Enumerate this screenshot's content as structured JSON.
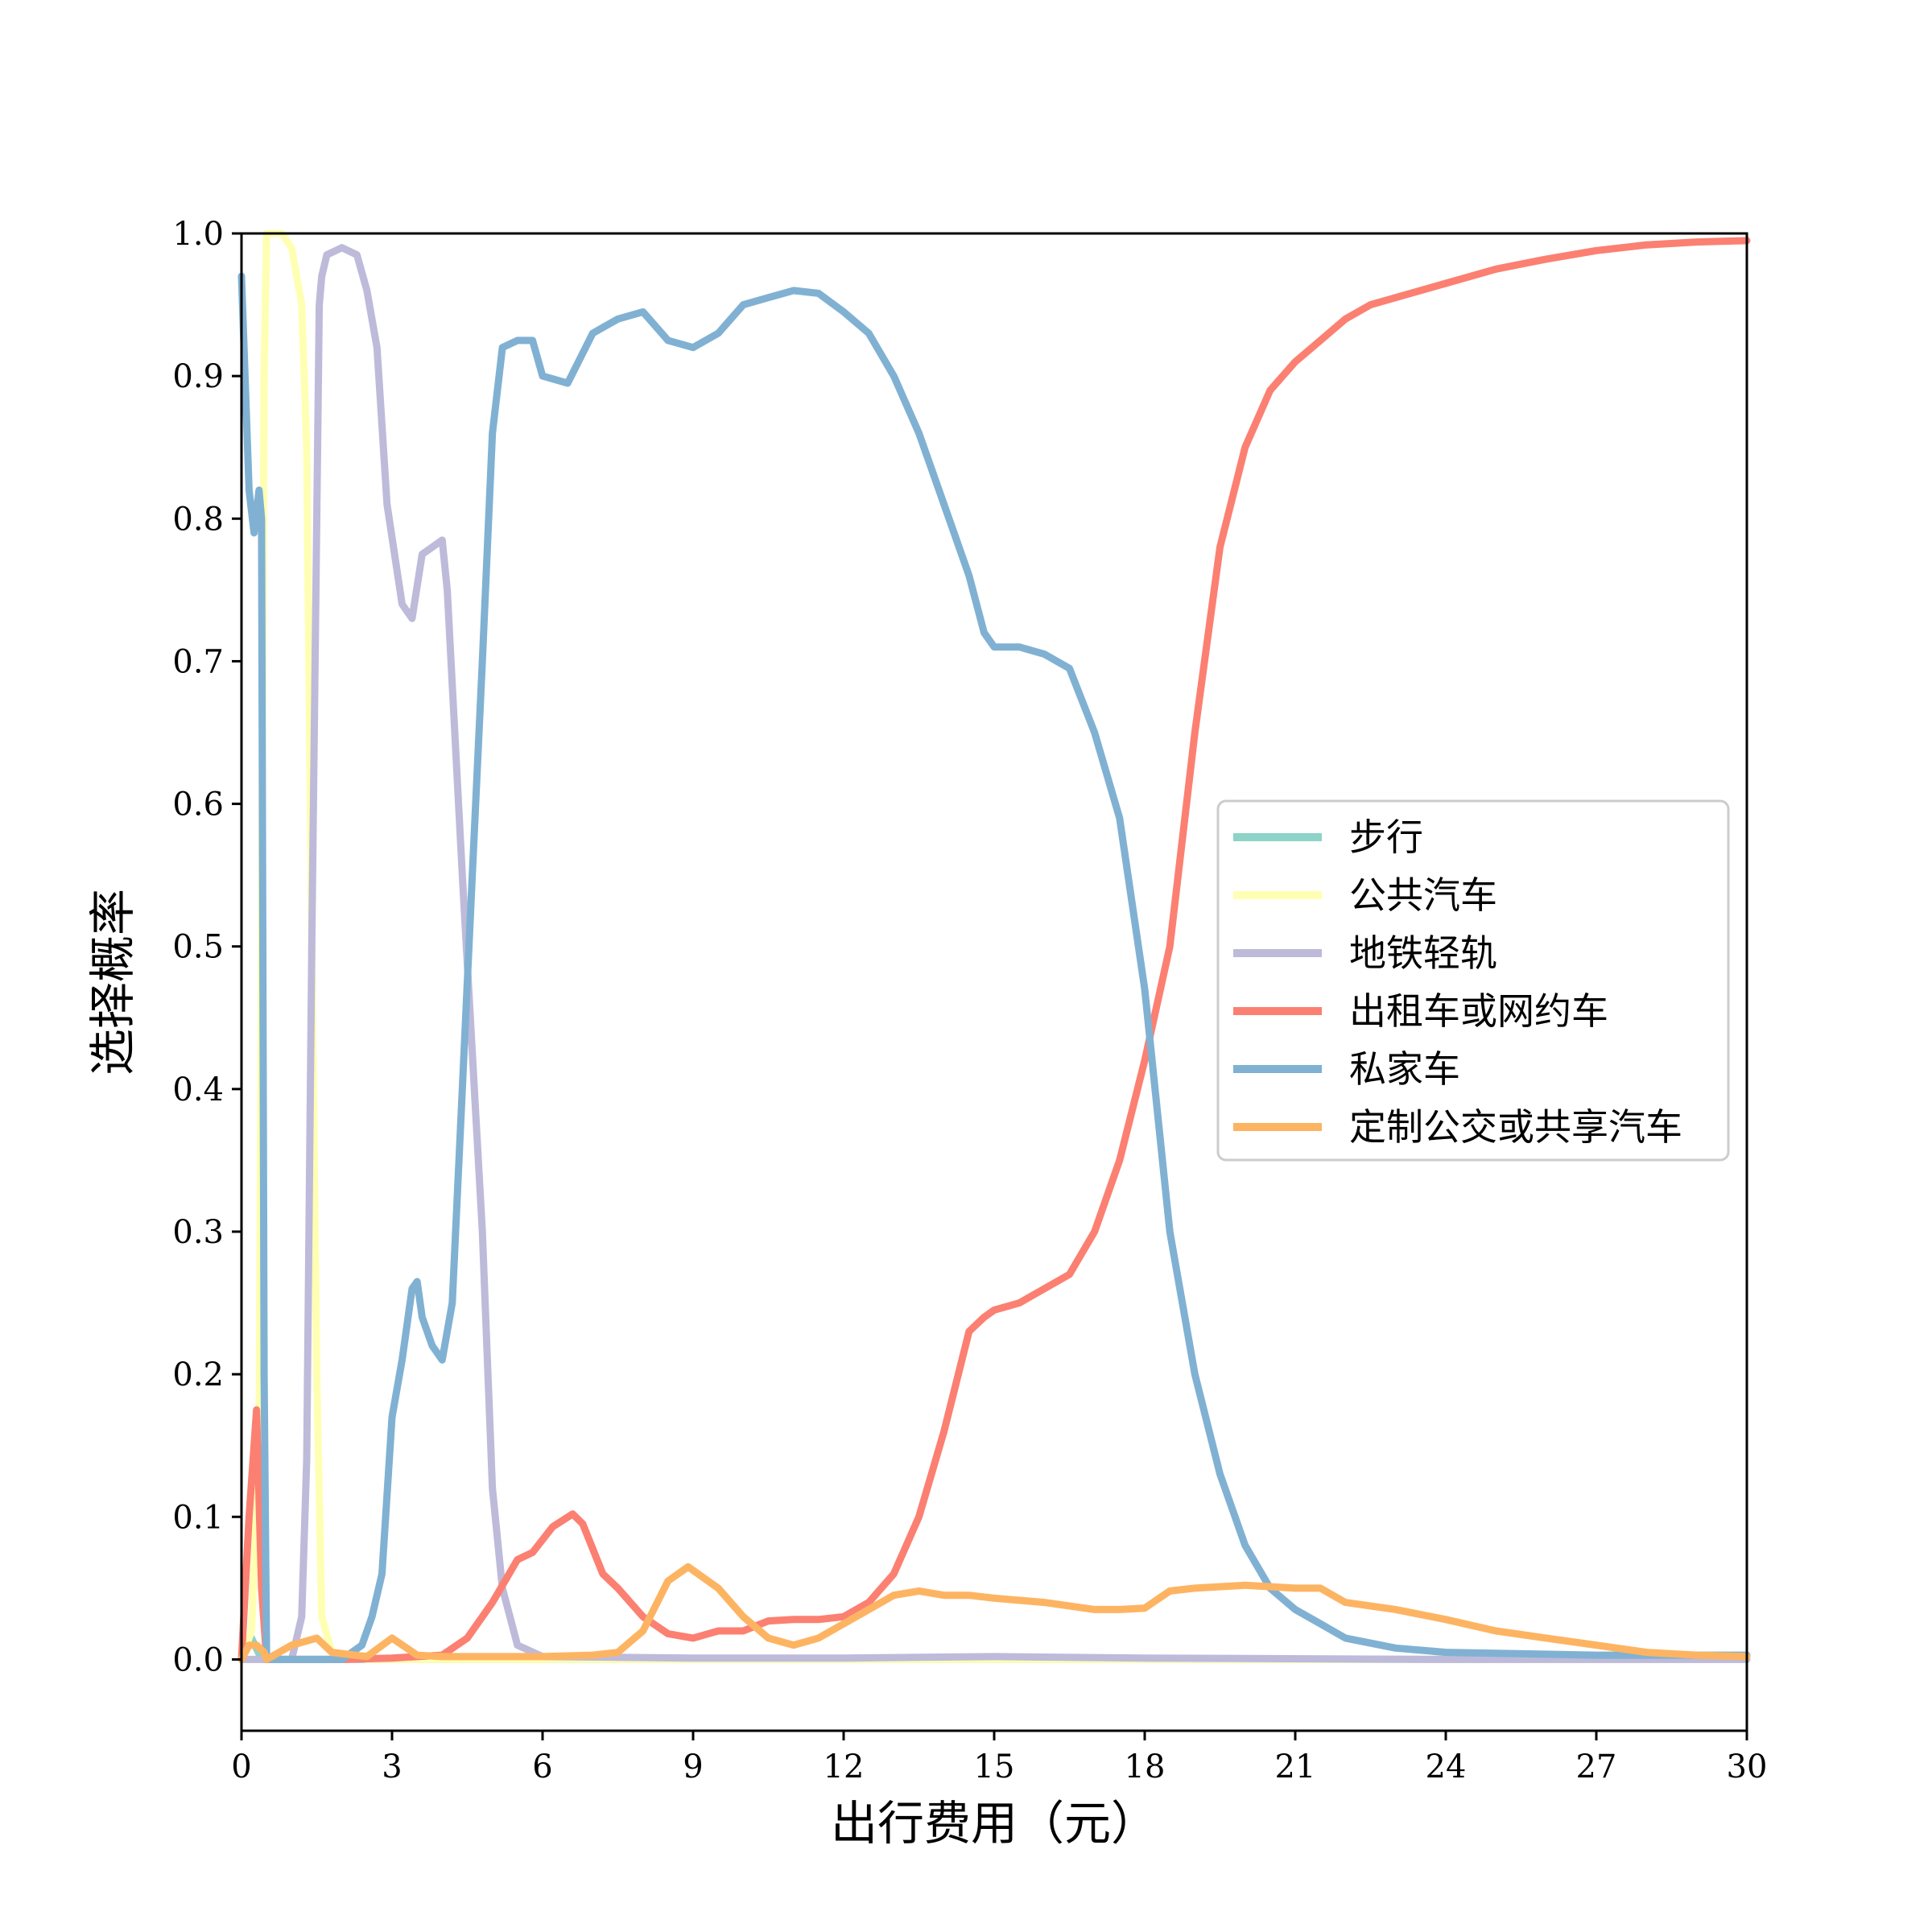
{
  "chart_data": {
    "type": "line",
    "title": "",
    "xlabel": "出行费用（元）",
    "ylabel": "选择概率",
    "xlim": [
      0,
      30
    ],
    "ylim": [
      -0.05,
      1.0
    ],
    "xticks": [
      0,
      3,
      6,
      9,
      12,
      15,
      18,
      21,
      24,
      27,
      30
    ],
    "xtick_labels": [
      "0",
      "3",
      "6",
      "9",
      "12",
      "15",
      "18",
      "21",
      "24",
      "27",
      "30"
    ],
    "yticks": [
      0.0,
      0.1,
      0.2,
      0.3,
      0.4,
      0.5,
      0.6,
      0.7,
      0.8,
      0.9,
      1.0
    ],
    "ytick_labels": [
      "0.0",
      "0.1",
      "0.2",
      "0.3",
      "0.4",
      "0.5",
      "0.6",
      "0.7",
      "0.8",
      "0.9",
      "1.0"
    ],
    "grid": false,
    "legend_position": "center-right",
    "series": [
      {
        "name": "步行",
        "color": "#8dd3c7",
        "points": [
          [
            0,
            0.0
          ],
          [
            0.2,
            0.015
          ],
          [
            0.4,
            0.0
          ],
          [
            2,
            0.0
          ],
          [
            30,
            0.0
          ]
        ]
      },
      {
        "name": "公共汽车",
        "color": "#ffffb3",
        "points": [
          [
            0,
            0.0
          ],
          [
            0.2,
            0.02
          ],
          [
            0.35,
            0.15
          ],
          [
            0.45,
            0.9
          ],
          [
            0.5,
            1.0
          ],
          [
            0.8,
            1.0
          ],
          [
            1.0,
            0.99
          ],
          [
            1.2,
            0.95
          ],
          [
            1.3,
            0.85
          ],
          [
            1.4,
            0.5
          ],
          [
            1.5,
            0.2
          ],
          [
            1.6,
            0.03
          ],
          [
            1.8,
            0.005
          ],
          [
            2.5,
            0.0
          ],
          [
            30,
            0.0
          ]
        ]
      },
      {
        "name": "地铁轻轨",
        "color": "#bebada",
        "points": [
          [
            0,
            0.0
          ],
          [
            0.3,
            0.0
          ],
          [
            1.0,
            0.0
          ],
          [
            1.2,
            0.03
          ],
          [
            1.3,
            0.14
          ],
          [
            1.4,
            0.5
          ],
          [
            1.5,
            0.8
          ],
          [
            1.55,
            0.95
          ],
          [
            1.6,
            0.97
          ],
          [
            1.7,
            0.985
          ],
          [
            2.0,
            0.99
          ],
          [
            2.3,
            0.985
          ],
          [
            2.5,
            0.96
          ],
          [
            2.7,
            0.92
          ],
          [
            2.9,
            0.81
          ],
          [
            3.2,
            0.74
          ],
          [
            3.4,
            0.73
          ],
          [
            3.6,
            0.775
          ],
          [
            4.0,
            0.785
          ],
          [
            4.1,
            0.75
          ],
          [
            4.4,
            0.55
          ],
          [
            4.8,
            0.3
          ],
          [
            5.0,
            0.12
          ],
          [
            5.2,
            0.05
          ],
          [
            5.5,
            0.01
          ],
          [
            6.0,
            0.002
          ],
          [
            9,
            0.001
          ],
          [
            12,
            0.001
          ],
          [
            15,
            0.002
          ],
          [
            18,
            0.001
          ],
          [
            24,
            0.0
          ],
          [
            30,
            0.0
          ]
        ]
      },
      {
        "name": "出租车或网约车",
        "color": "#fb8072",
        "points": [
          [
            0,
            0.0
          ],
          [
            0.15,
            0.1
          ],
          [
            0.3,
            0.175
          ],
          [
            0.4,
            0.05
          ],
          [
            0.5,
            0.0
          ],
          [
            2,
            0.0
          ],
          [
            3,
            0.001
          ],
          [
            4,
            0.003
          ],
          [
            4.5,
            0.015
          ],
          [
            5.0,
            0.04
          ],
          [
            5.5,
            0.07
          ],
          [
            5.8,
            0.075
          ],
          [
            6.2,
            0.093
          ],
          [
            6.6,
            0.102
          ],
          [
            6.8,
            0.095
          ],
          [
            7.2,
            0.06
          ],
          [
            7.5,
            0.05
          ],
          [
            8.0,
            0.03
          ],
          [
            8.5,
            0.018
          ],
          [
            9.0,
            0.015
          ],
          [
            9.5,
            0.02
          ],
          [
            10.0,
            0.02
          ],
          [
            10.5,
            0.027
          ],
          [
            11.0,
            0.028
          ],
          [
            11.5,
            0.028
          ],
          [
            12.0,
            0.03
          ],
          [
            12.5,
            0.04
          ],
          [
            13.0,
            0.06
          ],
          [
            13.5,
            0.1
          ],
          [
            14.0,
            0.16
          ],
          [
            14.5,
            0.23
          ],
          [
            14.8,
            0.24
          ],
          [
            15.0,
            0.245
          ],
          [
            15.5,
            0.25
          ],
          [
            16.0,
            0.26
          ],
          [
            16.5,
            0.27
          ],
          [
            17.0,
            0.3
          ],
          [
            17.5,
            0.35
          ],
          [
            18.0,
            0.42
          ],
          [
            18.5,
            0.5
          ],
          [
            19.0,
            0.65
          ],
          [
            19.5,
            0.78
          ],
          [
            20.0,
            0.85
          ],
          [
            20.5,
            0.89
          ],
          [
            21.0,
            0.91
          ],
          [
            21.5,
            0.925
          ],
          [
            22.0,
            0.94
          ],
          [
            22.5,
            0.95
          ],
          [
            23.0,
            0.955
          ],
          [
            24.0,
            0.965
          ],
          [
            25.0,
            0.975
          ],
          [
            26.0,
            0.982
          ],
          [
            27.0,
            0.988
          ],
          [
            28.0,
            0.992
          ],
          [
            29.0,
            0.994
          ],
          [
            30,
            0.995
          ]
        ]
      },
      {
        "name": "私家车",
        "color": "#80b1d3",
        "points": [
          [
            0,
            0.97
          ],
          [
            0.15,
            0.82
          ],
          [
            0.25,
            0.79
          ],
          [
            0.35,
            0.82
          ],
          [
            0.4,
            0.8
          ],
          [
            0.45,
            0.2
          ],
          [
            0.5,
            0.0
          ],
          [
            1.0,
            0.0
          ],
          [
            2.0,
            0.0
          ],
          [
            2.4,
            0.01
          ],
          [
            2.6,
            0.03
          ],
          [
            2.8,
            0.06
          ],
          [
            3.0,
            0.17
          ],
          [
            3.2,
            0.21
          ],
          [
            3.4,
            0.26
          ],
          [
            3.5,
            0.265
          ],
          [
            3.6,
            0.24
          ],
          [
            3.8,
            0.22
          ],
          [
            4.0,
            0.21
          ],
          [
            4.2,
            0.25
          ],
          [
            4.4,
            0.4
          ],
          [
            4.6,
            0.55
          ],
          [
            4.8,
            0.7
          ],
          [
            5.0,
            0.86
          ],
          [
            5.2,
            0.92
          ],
          [
            5.5,
            0.925
          ],
          [
            5.8,
            0.925
          ],
          [
            6.0,
            0.9
          ],
          [
            6.5,
            0.895
          ],
          [
            7.0,
            0.93
          ],
          [
            7.5,
            0.94
          ],
          [
            8.0,
            0.945
          ],
          [
            8.5,
            0.925
          ],
          [
            9.0,
            0.92
          ],
          [
            9.5,
            0.93
          ],
          [
            10.0,
            0.95
          ],
          [
            10.5,
            0.955
          ],
          [
            11.0,
            0.96
          ],
          [
            11.5,
            0.958
          ],
          [
            12.0,
            0.945
          ],
          [
            12.5,
            0.93
          ],
          [
            13.0,
            0.9
          ],
          [
            13.5,
            0.86
          ],
          [
            14.0,
            0.81
          ],
          [
            14.5,
            0.76
          ],
          [
            14.8,
            0.72
          ],
          [
            15.0,
            0.71
          ],
          [
            15.5,
            0.71
          ],
          [
            16.0,
            0.705
          ],
          [
            16.5,
            0.695
          ],
          [
            17.0,
            0.65
          ],
          [
            17.5,
            0.59
          ],
          [
            18.0,
            0.47
          ],
          [
            18.5,
            0.3
          ],
          [
            19.0,
            0.2
          ],
          [
            19.5,
            0.13
          ],
          [
            20.0,
            0.08
          ],
          [
            20.5,
            0.05
          ],
          [
            21.0,
            0.035
          ],
          [
            21.5,
            0.025
          ],
          [
            22.0,
            0.015
          ],
          [
            23.0,
            0.008
          ],
          [
            24.0,
            0.005
          ],
          [
            27.0,
            0.003
          ],
          [
            30,
            0.003
          ]
        ]
      },
      {
        "name": "定制公交或共享汽车",
        "color": "#fdb462",
        "points": [
          [
            0,
            0.0
          ],
          [
            0.15,
            0.01
          ],
          [
            0.3,
            0.01
          ],
          [
            0.45,
            0.005
          ],
          [
            0.5,
            0.0
          ],
          [
            1.0,
            0.01
          ],
          [
            1.2,
            0.012
          ],
          [
            1.5,
            0.015
          ],
          [
            1.8,
            0.005
          ],
          [
            2.5,
            0.002
          ],
          [
            3.0,
            0.015
          ],
          [
            3.5,
            0.003
          ],
          [
            4.0,
            0.002
          ],
          [
            6.0,
            0.002
          ],
          [
            7.0,
            0.003
          ],
          [
            7.5,
            0.005
          ],
          [
            8.0,
            0.02
          ],
          [
            8.5,
            0.055
          ],
          [
            8.9,
            0.065
          ],
          [
            9.5,
            0.05
          ],
          [
            10.0,
            0.03
          ],
          [
            10.5,
            0.015
          ],
          [
            11.0,
            0.01
          ],
          [
            11.5,
            0.015
          ],
          [
            12.0,
            0.025
          ],
          [
            12.5,
            0.035
          ],
          [
            13.0,
            0.045
          ],
          [
            13.5,
            0.048
          ],
          [
            14.0,
            0.045
          ],
          [
            14.5,
            0.045
          ],
          [
            15.0,
            0.043
          ],
          [
            16.0,
            0.04
          ],
          [
            17.0,
            0.035
          ],
          [
            17.5,
            0.035
          ],
          [
            18.0,
            0.036
          ],
          [
            18.5,
            0.048
          ],
          [
            19.0,
            0.05
          ],
          [
            20.0,
            0.052
          ],
          [
            21.0,
            0.05
          ],
          [
            21.5,
            0.05
          ],
          [
            22.0,
            0.04
          ],
          [
            23.0,
            0.035
          ],
          [
            24.0,
            0.028
          ],
          [
            25.0,
            0.02
          ],
          [
            26.0,
            0.015
          ],
          [
            27.0,
            0.01
          ],
          [
            28.0,
            0.005
          ],
          [
            29.0,
            0.003
          ],
          [
            30,
            0.002
          ]
        ]
      }
    ]
  }
}
